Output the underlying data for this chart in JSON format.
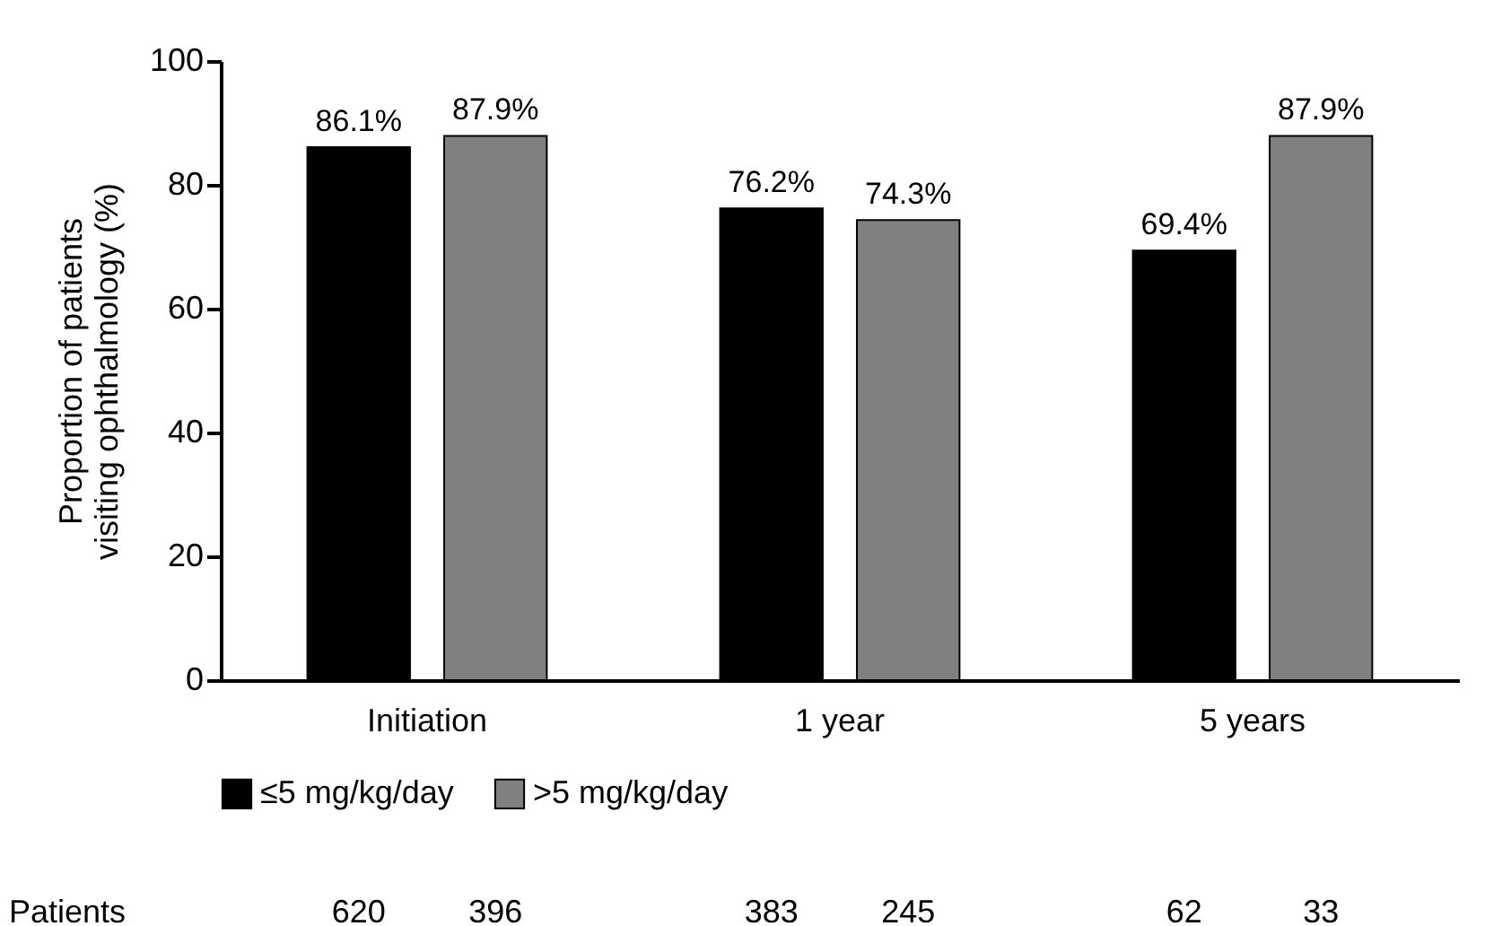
{
  "chart_data": {
    "type": "bar",
    "ylabel": "Proportion of patients\nvisiting ophthalmology (%)",
    "categories": [
      "Initiation",
      "1 year",
      "5 years"
    ],
    "series": [
      {
        "name": "≤5 mg/kg/day",
        "color": "#000000",
        "values": [
          86.1,
          76.2,
          69.4
        ],
        "value_labels": [
          "86.1%",
          "76.2%",
          "69.4%"
        ]
      },
      {
        "name": ">5 mg/kg/day",
        "color": "#808080",
        "values": [
          87.9,
          74.3,
          87.9
        ],
        "value_labels": [
          "87.9%",
          "74.3%",
          "87.9%"
        ]
      }
    ],
    "ylim": [
      0,
      100
    ],
    "yticks": [
      0,
      20,
      40,
      60,
      80,
      100
    ],
    "grid": false,
    "legend": "bottom",
    "annotations": [
      "Patients",
      "620",
      "396",
      "383",
      "245",
      "62",
      "33"
    ]
  }
}
